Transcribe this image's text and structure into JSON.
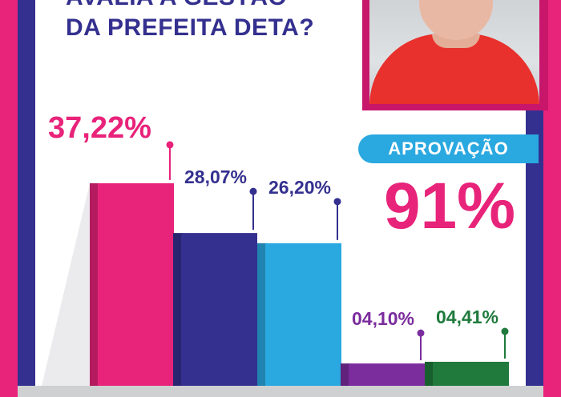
{
  "header": {
    "question_lines": [
      "AVALIA A GESTÃO",
      "DA PREFEITA DETA?"
    ]
  },
  "approval": {
    "label": "APROVAÇÃO",
    "value": "91%"
  },
  "colors": {
    "pink": "#e8237a",
    "navy": "#34308f",
    "blue": "#2aa8e0",
    "purple": "#7b2c9d",
    "green": "#1f7a3c"
  },
  "chart_data": {
    "type": "bar",
    "categories": [
      "",
      "",
      "",
      "",
      ""
    ],
    "values": [
      37.22,
      28.07,
      26.2,
      4.1,
      4.41
    ],
    "data_labels": [
      "37,22%",
      "28,07%",
      "26,20%",
      "04,10%",
      "04,41%"
    ],
    "bar_colors": [
      "#e8237a",
      "#34308f",
      "#2aa8e0",
      "#7b2c9d",
      "#1f7a3c"
    ],
    "label_colors": [
      "#e8237a",
      "#34308f",
      "#34308f",
      "#7b2c9d",
      "#1f7a3c"
    ],
    "ylim": [
      0,
      40
    ],
    "grid": false,
    "legend": "none"
  }
}
